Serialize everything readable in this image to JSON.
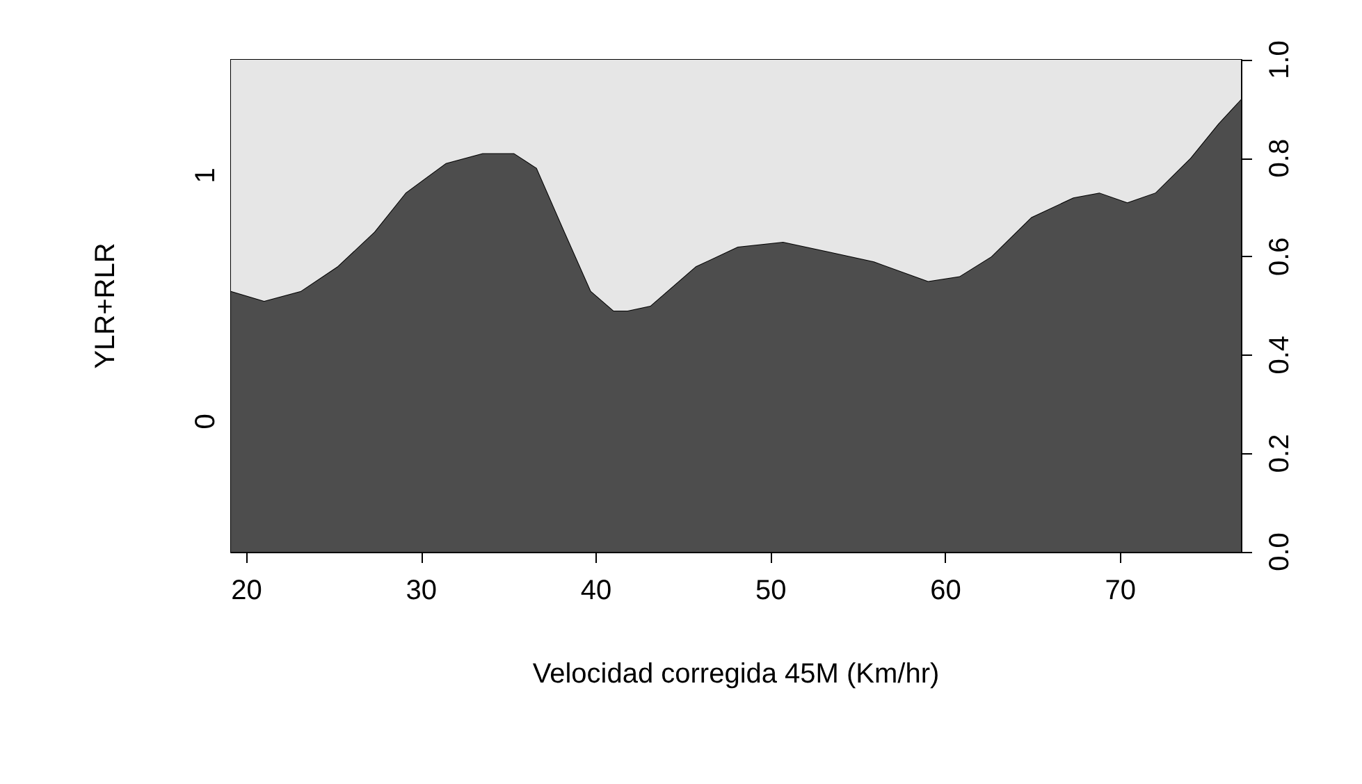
{
  "chart_data": {
    "type": "area",
    "stacked": true,
    "xlabel": "Velocidad corregida 45M (Km/hr)",
    "ylabel": "YLR+RLR",
    "x": [
      19.1,
      21.0,
      23.1,
      25.2,
      27.3,
      29.1,
      31.4,
      33.5,
      35.3,
      36.6,
      38.2,
      39.7,
      41.0,
      41.8,
      43.1,
      45.7,
      48.1,
      50.7,
      53.3,
      55.9,
      59.0,
      60.8,
      62.6,
      64.9,
      67.3,
      68.8,
      70.4,
      72.0,
      74.0,
      75.6,
      76.9
    ],
    "series": [
      {
        "name": "0",
        "color": "#4d4d4d",
        "values": [
          0.53,
          0.51,
          0.53,
          0.58,
          0.65,
          0.73,
          0.79,
          0.81,
          0.81,
          0.78,
          0.65,
          0.53,
          0.49,
          0.49,
          0.5,
          0.58,
          0.62,
          0.63,
          0.61,
          0.59,
          0.55,
          0.56,
          0.6,
          0.68,
          0.72,
          0.73,
          0.71,
          0.73,
          0.8,
          0.87,
          0.92
        ]
      },
      {
        "name": "1",
        "color": "#e6e6e6",
        "values": [
          0.47,
          0.49,
          0.47,
          0.42,
          0.35,
          0.27,
          0.21,
          0.19,
          0.19,
          0.22,
          0.35,
          0.47,
          0.51,
          0.51,
          0.5,
          0.42,
          0.38,
          0.37,
          0.39,
          0.41,
          0.45,
          0.44,
          0.4,
          0.32,
          0.28,
          0.27,
          0.29,
          0.27,
          0.2,
          0.13,
          0.08
        ]
      }
    ],
    "xlim": [
      19.1,
      76.9
    ],
    "xticks": [
      20,
      30,
      40,
      50,
      60,
      70
    ],
    "ylim": [
      0,
      1
    ],
    "yticks": [
      {
        "value": 0,
        "label": "0.0"
      },
      {
        "value": 0.2,
        "label": "0.2"
      },
      {
        "value": 0.4,
        "label": "0.4"
      },
      {
        "value": 0.6,
        "label": "0.6"
      },
      {
        "value": 0.8,
        "label": "0.8"
      },
      {
        "value": 1,
        "label": "1.0"
      }
    ],
    "legend": false
  }
}
